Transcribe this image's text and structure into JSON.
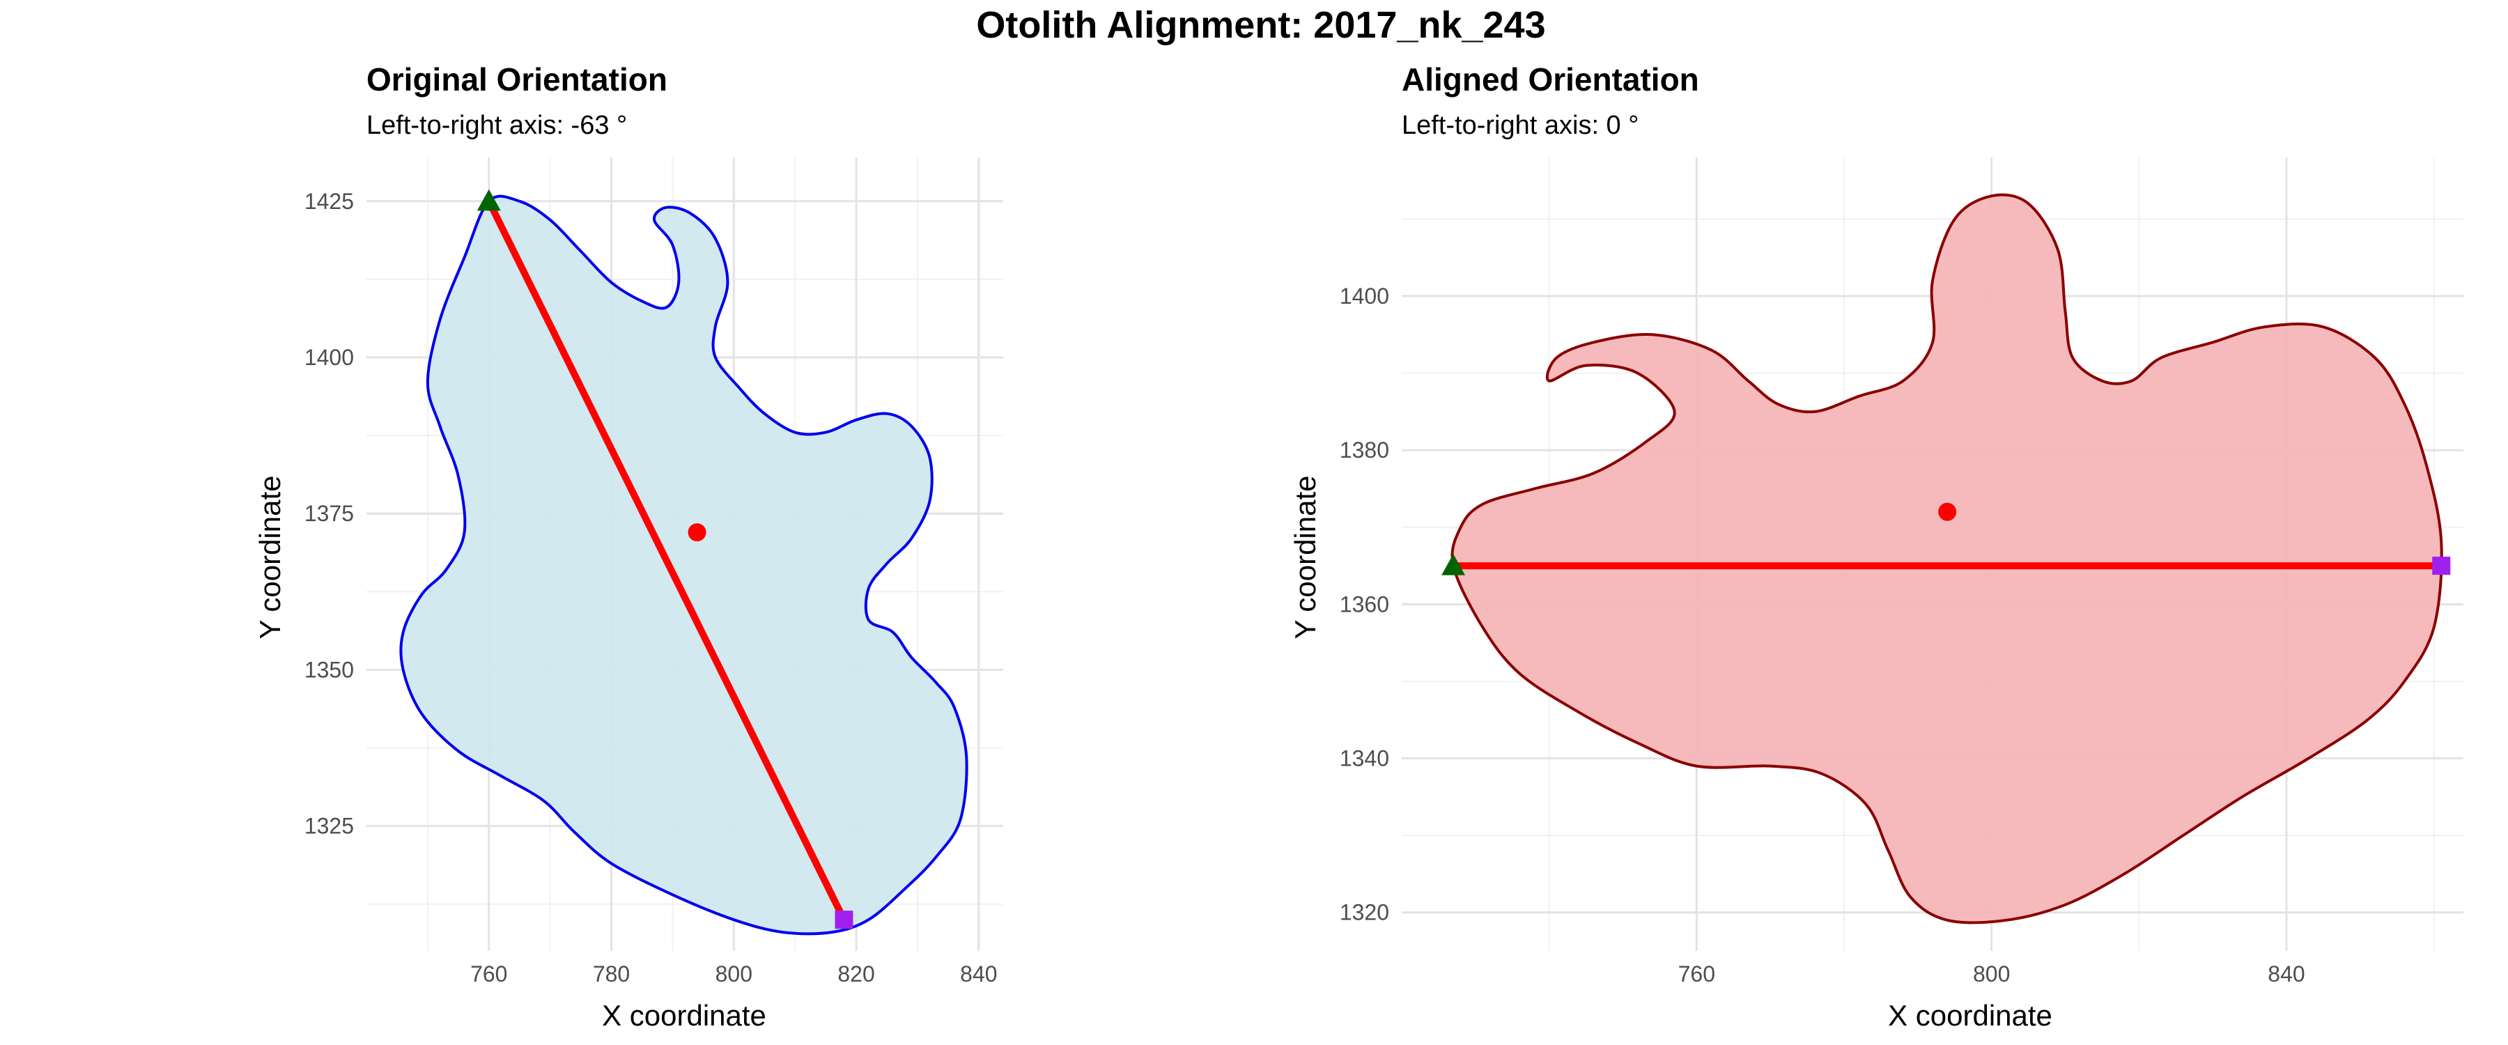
{
  "figure_title": "Otolith Alignment: 2017_nk_243",
  "chart_data": [
    {
      "type": "area",
      "title": "Original Orientation",
      "subtitle": "Left-to-right axis: -63 °",
      "xlabel": "X coordinate",
      "ylabel": "Y coordinate",
      "xlim": [
        740,
        844
      ],
      "ylim": [
        1305,
        1432
      ],
      "xticks": [
        760,
        780,
        800,
        820,
        840
      ],
      "yticks": [
        1325,
        1350,
        1375,
        1400,
        1425
      ],
      "grid": true,
      "colors": {
        "fill": "#cde7ee",
        "outline": "#0000ee",
        "axis_line": "#ff0000",
        "centroid": "#ff0000",
        "start_marker": "#006400",
        "end_marker": "#a020f0"
      },
      "outline": [
        [
          760,
          1425
        ],
        [
          765,
          1425
        ],
        [
          770,
          1422
        ],
        [
          775,
          1417
        ],
        [
          780,
          1412
        ],
        [
          785,
          1409
        ],
        [
          789,
          1408
        ],
        [
          791,
          1412
        ],
        [
          790,
          1418
        ],
        [
          787,
          1422
        ],
        [
          789,
          1424
        ],
        [
          793,
          1423
        ],
        [
          797,
          1419
        ],
        [
          799,
          1412
        ],
        [
          797,
          1405
        ],
        [
          797,
          1400
        ],
        [
          801,
          1395
        ],
        [
          805,
          1391
        ],
        [
          810,
          1388
        ],
        [
          815,
          1388
        ],
        [
          820,
          1390
        ],
        [
          825,
          1391
        ],
        [
          829,
          1389
        ],
        [
          832,
          1384
        ],
        [
          832,
          1377
        ],
        [
          829,
          1371
        ],
        [
          825,
          1367
        ],
        [
          822,
          1363
        ],
        [
          822,
          1358
        ],
        [
          826,
          1356
        ],
        [
          829,
          1352
        ],
        [
          833,
          1348
        ],
        [
          836,
          1344
        ],
        [
          838,
          1336
        ],
        [
          837,
          1326
        ],
        [
          833,
          1320
        ],
        [
          828,
          1315
        ],
        [
          822,
          1310
        ],
        [
          816,
          1308
        ],
        [
          808,
          1308
        ],
        [
          800,
          1310
        ],
        [
          790,
          1314
        ],
        [
          780,
          1319
        ],
        [
          774,
          1324
        ],
        [
          769,
          1329
        ],
        [
          762,
          1333
        ],
        [
          755,
          1337
        ],
        [
          749,
          1343
        ],
        [
          746,
          1350
        ],
        [
          746,
          1356
        ],
        [
          749,
          1362
        ],
        [
          753,
          1366
        ],
        [
          756,
          1372
        ],
        [
          755,
          1381
        ],
        [
          752,
          1389
        ],
        [
          750,
          1396
        ],
        [
          752,
          1406
        ],
        [
          756,
          1416
        ],
        [
          760,
          1425
        ]
      ],
      "axis_line": {
        "start": [
          760,
          1425
        ],
        "end": [
          818,
          1310
        ]
      },
      "centroid": [
        794,
        1372
      ]
    },
    {
      "type": "area",
      "title": "Aligned Orientation",
      "subtitle": "Left-to-right axis: 0 °",
      "xlabel": "X coordinate",
      "ylabel": "Y coordinate",
      "xlim": [
        720,
        864
      ],
      "ylim": [
        1315,
        1418
      ],
      "xticks": [
        760,
        800,
        840
      ],
      "yticks": [
        1320,
        1340,
        1360,
        1380,
        1400
      ],
      "grid": true,
      "colors": {
        "fill": "#f5b3b5",
        "outline": "#8b0000",
        "axis_line": "#ff0000",
        "centroid": "#ff0000",
        "start_marker": "#006400",
        "end_marker": "#a020f0"
      },
      "outline": [
        [
          727,
          1365
        ],
        [
          728,
          1370
        ],
        [
          731,
          1373
        ],
        [
          738,
          1375
        ],
        [
          746,
          1377
        ],
        [
          753,
          1381
        ],
        [
          757,
          1385
        ],
        [
          752,
          1390
        ],
        [
          745,
          1391
        ],
        [
          740,
          1389
        ],
        [
          741,
          1392
        ],
        [
          746,
          1394
        ],
        [
          754,
          1395
        ],
        [
          762,
          1393
        ],
        [
          767,
          1389
        ],
        [
          771,
          1386
        ],
        [
          776,
          1385
        ],
        [
          782,
          1387
        ],
        [
          788,
          1389
        ],
        [
          792,
          1394
        ],
        [
          792,
          1402
        ],
        [
          795,
          1410
        ],
        [
          800,
          1413
        ],
        [
          805,
          1412
        ],
        [
          809,
          1406
        ],
        [
          810,
          1398
        ],
        [
          811,
          1392
        ],
        [
          815,
          1389
        ],
        [
          819,
          1389
        ],
        [
          823,
          1392
        ],
        [
          830,
          1394
        ],
        [
          837,
          1396
        ],
        [
          845,
          1396
        ],
        [
          852,
          1392
        ],
        [
          856,
          1386
        ],
        [
          859,
          1378
        ],
        [
          861,
          1368
        ],
        [
          860,
          1357
        ],
        [
          856,
          1350
        ],
        [
          851,
          1345
        ],
        [
          843,
          1340
        ],
        [
          834,
          1335
        ],
        [
          826,
          1330
        ],
        [
          818,
          1325
        ],
        [
          810,
          1321
        ],
        [
          802,
          1319
        ],
        [
          794,
          1319
        ],
        [
          789,
          1322
        ],
        [
          786,
          1328
        ],
        [
          783,
          1334
        ],
        [
          777,
          1338
        ],
        [
          770,
          1339
        ],
        [
          760,
          1339
        ],
        [
          752,
          1342
        ],
        [
          744,
          1346
        ],
        [
          736,
          1351
        ],
        [
          731,
          1357
        ],
        [
          727,
          1365
        ]
      ],
      "axis_line": {
        "start": [
          727,
          1365
        ],
        "end": [
          861,
          1365
        ]
      },
      "centroid": [
        794,
        1372
      ]
    }
  ]
}
